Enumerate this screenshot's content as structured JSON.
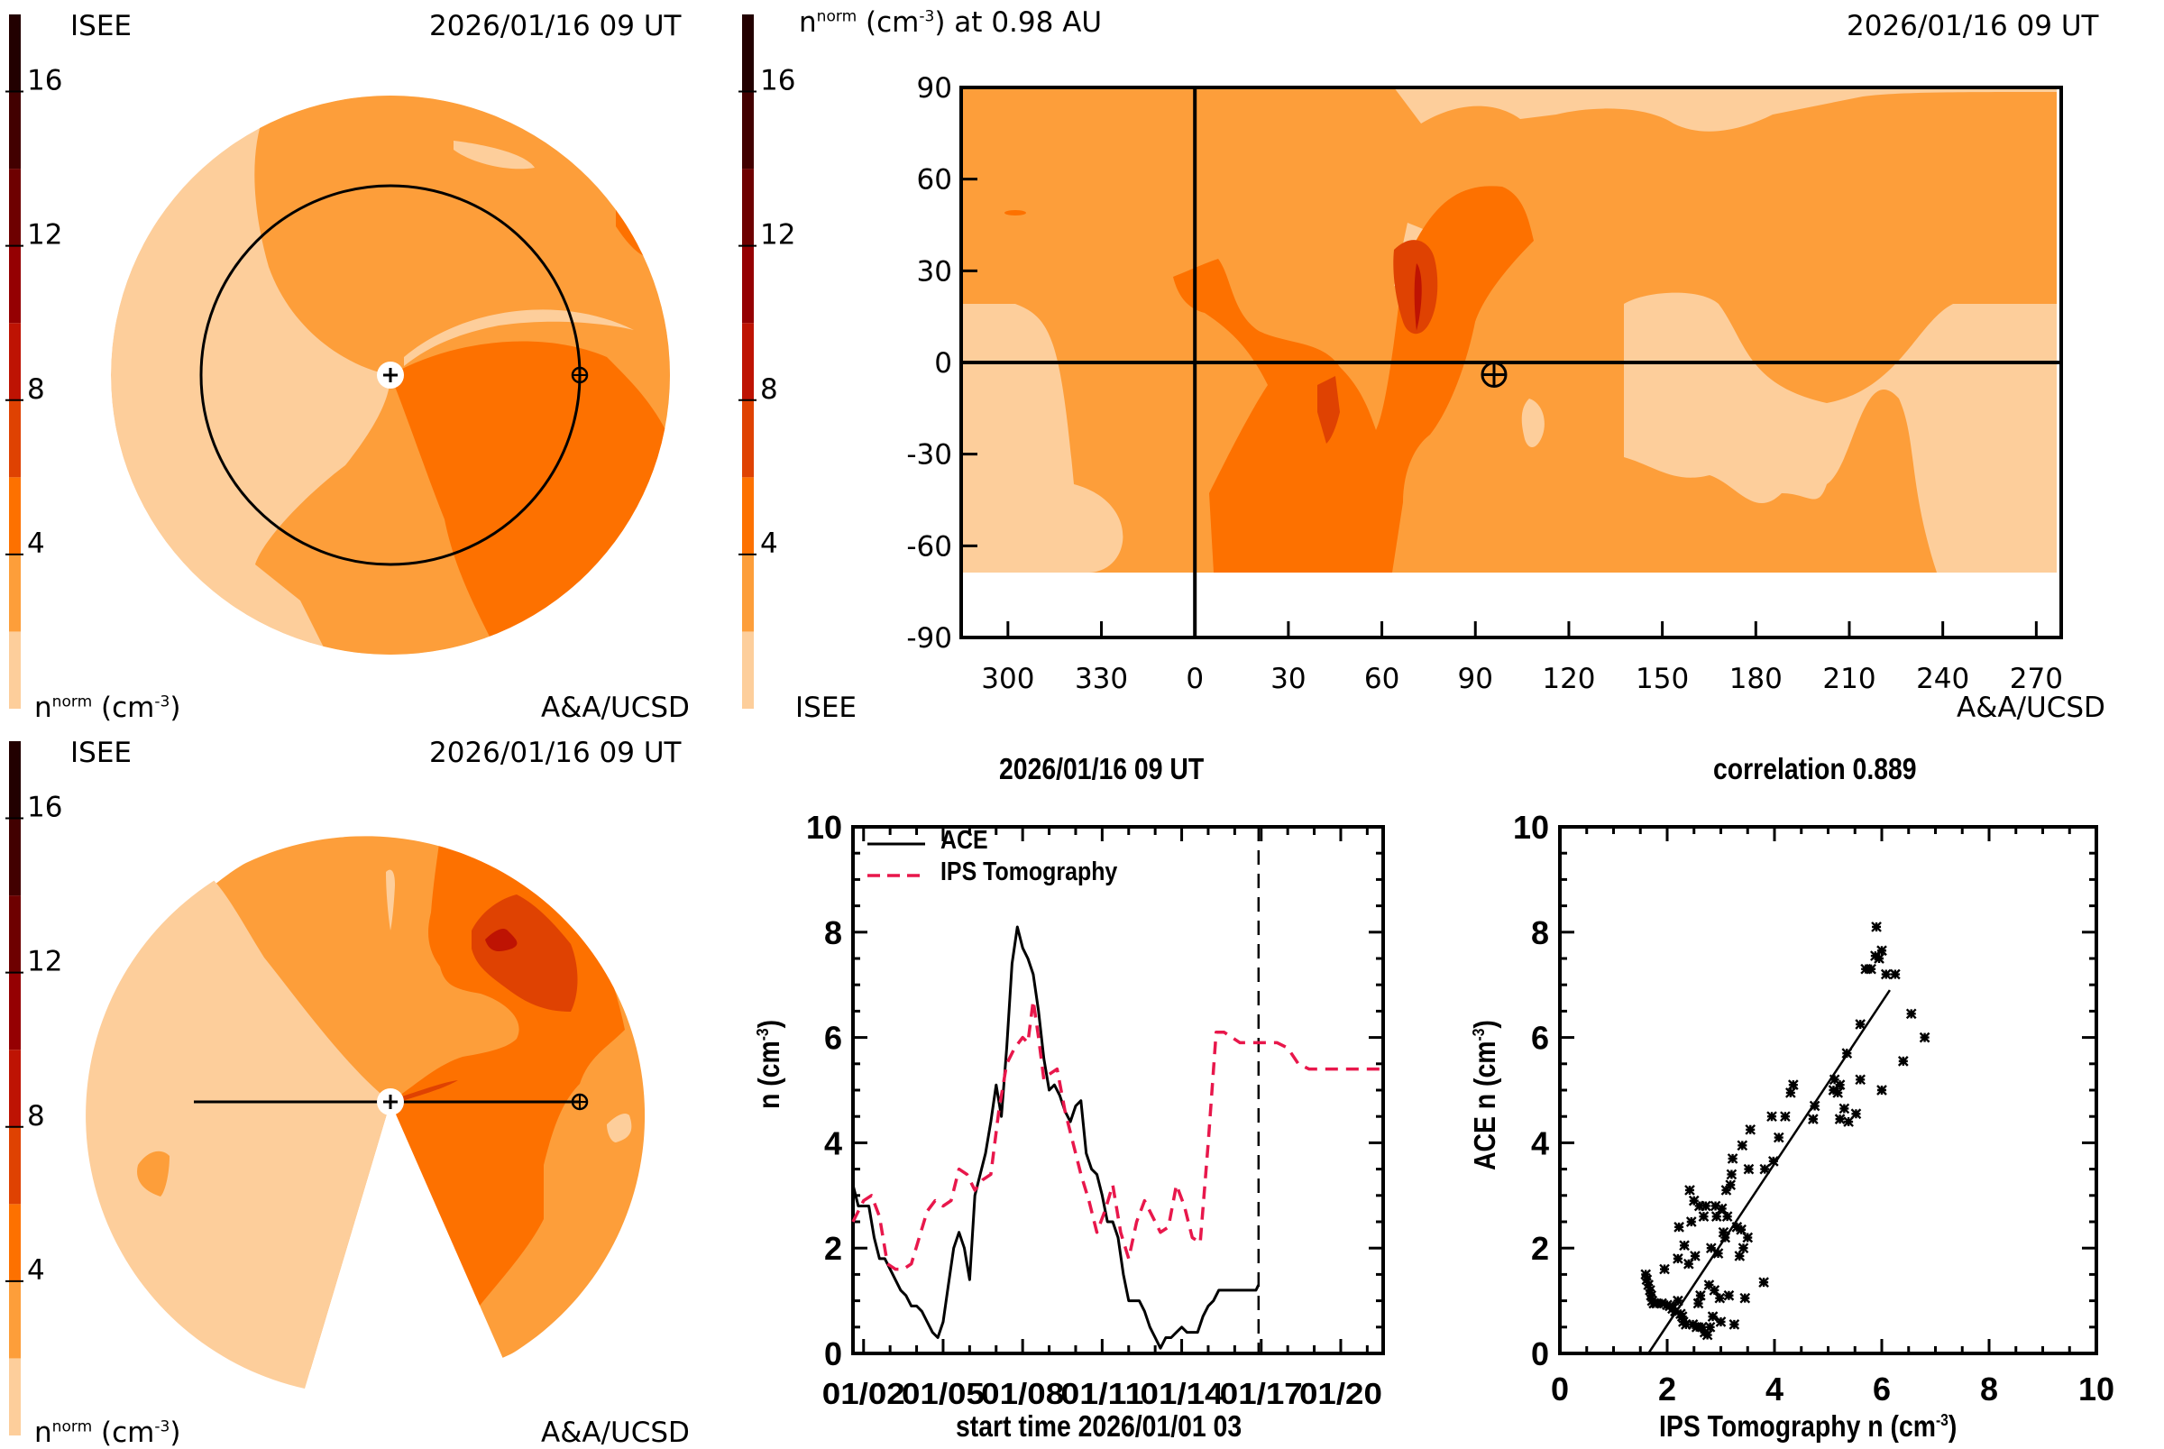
{
  "colorscale": {
    "levels": [
      0,
      2,
      4,
      6,
      8,
      10,
      12,
      14,
      16,
      18
    ],
    "colors": [
      "#FDCE9B",
      "#FD9E3A",
      "#FD7100",
      "#DF4202",
      "#BE1303",
      "#950002",
      "#6E0000",
      "#420000",
      "#220000"
    ],
    "tick_labels": [
      "16",
      "12",
      "8",
      "4"
    ],
    "tick_values": [
      16,
      12,
      8,
      4
    ]
  },
  "panels": {
    "top_left": {
      "org_left": "ISEE",
      "timestamp": "2026/01/16 09 UT",
      "quantity": "n",
      "quantity_sup": "norm",
      "unit": "(cm",
      "unit_sup": "-3",
      "unit_close": ")",
      "credit": "A&A/UCSD"
    },
    "top_right": {
      "title_quantity": "n",
      "title_sup": "norm",
      "title_unit": "(cm",
      "title_unit_sup": "-3",
      "title_rest": ") at 0.98 AU",
      "timestamp": "2026/01/16 09 UT",
      "org_left": "ISEE",
      "credit": "A&A/UCSD",
      "y_ticks": [
        "90",
        "60",
        "30",
        "0",
        "-30",
        "-60",
        "-90"
      ],
      "y_tick_values": [
        90,
        60,
        30,
        0,
        -30,
        -60,
        -90
      ],
      "x_ticks": [
        "300",
        "330",
        "0",
        "30",
        "60",
        "90",
        "120",
        "150",
        "180",
        "210",
        "240",
        "270"
      ],
      "earth_marker": {
        "longitude": 96,
        "latitude": -4
      }
    },
    "bottom_left": {
      "org_left": "ISEE",
      "timestamp": "2026/01/16 09 UT",
      "quantity": "n",
      "quantity_sup": "norm",
      "unit": "(cm",
      "unit_sup": "-3",
      "unit_close": ")",
      "credit": "A&A/UCSD"
    }
  },
  "chart_data": [
    {
      "type": "line",
      "title": "2026/01/16 09 UT",
      "xlabel": "start time 2026/01/01 03",
      "ylabel": "n (cm-3)",
      "ylabel_main": "n (cm",
      "ylabel_sup": "-3",
      "ylabel_close": ")",
      "xlim_days": [
        0.6,
        20.6
      ],
      "ylim": [
        0,
        10
      ],
      "x_tick_labels": [
        "01/02",
        "01/05",
        "01/08",
        "01/11",
        "01/14",
        "01/17",
        "01/20"
      ],
      "x_tick_days": [
        1,
        4,
        7,
        10,
        13,
        16,
        19
      ],
      "y_tick_labels": [
        "0",
        "2",
        "4",
        "6",
        "8",
        "10"
      ],
      "y_tick_values": [
        0,
        2,
        4,
        6,
        8,
        10
      ],
      "current_time_day": 15.9,
      "legend": [
        "ACE",
        "IPS Tomography"
      ],
      "legend_position": "top-left",
      "series": [
        {
          "name": "ACE",
          "color": "#000000",
          "style": "solid",
          "x": [
            0.6,
            0.8,
            1.0,
            1.2,
            1.4,
            1.6,
            1.8,
            2.0,
            2.2,
            2.4,
            2.6,
            2.8,
            3.0,
            3.2,
            3.4,
            3.6,
            3.8,
            4.0,
            4.2,
            4.4,
            4.6,
            4.8,
            5.0,
            5.2,
            5.4,
            5.6,
            5.8,
            6.0,
            6.2,
            6.4,
            6.6,
            6.8,
            7.0,
            7.2,
            7.4,
            7.6,
            7.8,
            8.0,
            8.2,
            8.4,
            8.6,
            8.8,
            9.0,
            9.2,
            9.4,
            9.6,
            9.8,
            10.0,
            10.2,
            10.4,
            10.6,
            10.8,
            11.0,
            11.2,
            11.4,
            11.6,
            11.8,
            12.0,
            12.2,
            12.4,
            12.6,
            12.8,
            13.0,
            13.2,
            13.4,
            13.6,
            13.8,
            14.0,
            14.2,
            14.4,
            14.6,
            14.8,
            15.0,
            15.2,
            15.4,
            15.6,
            15.8,
            15.9
          ],
          "y": [
            3.2,
            2.8,
            2.8,
            2.8,
            2.2,
            1.8,
            1.8,
            1.6,
            1.4,
            1.2,
            1.1,
            0.9,
            0.9,
            0.8,
            0.6,
            0.4,
            0.3,
            0.6,
            1.3,
            2.0,
            2.3,
            2.0,
            1.4,
            3.0,
            3.4,
            3.8,
            4.4,
            5.1,
            4.5,
            5.8,
            7.4,
            8.1,
            7.7,
            7.5,
            7.2,
            6.5,
            5.6,
            5.0,
            5.1,
            4.9,
            4.6,
            4.4,
            4.7,
            4.8,
            3.8,
            3.5,
            3.4,
            3.0,
            2.5,
            2.5,
            2.2,
            1.5,
            1.0,
            1.0,
            1.0,
            0.8,
            0.5,
            0.3,
            0.1,
            0.3,
            0.3,
            0.4,
            0.5,
            0.4,
            0.4,
            0.4,
            0.7,
            0.9,
            1.0,
            1.2,
            1.2,
            1.2,
            1.2,
            1.2,
            1.2,
            1.2,
            1.2,
            1.3
          ]
        },
        {
          "name": "IPS Tomography",
          "color": "#E8174B",
          "style": "dashed",
          "x": [
            0.6,
            1.0,
            1.3,
            1.6,
            1.9,
            2.2,
            2.5,
            2.8,
            3.1,
            3.4,
            3.7,
            4.0,
            4.3,
            4.6,
            4.9,
            5.2,
            5.5,
            5.8,
            6.1,
            6.4,
            6.7,
            7.0,
            7.2,
            7.4,
            7.6,
            7.8,
            8.0,
            8.3,
            8.6,
            8.9,
            9.2,
            9.5,
            9.8,
            10.1,
            10.4,
            10.7,
            11.0,
            11.3,
            11.6,
            11.9,
            12.2,
            12.5,
            12.8,
            13.1,
            13.4,
            13.7,
            14.0,
            14.3,
            14.6,
            14.9,
            15.2,
            15.5,
            15.9,
            16.3,
            16.6,
            17.0,
            17.4,
            17.8,
            18.2,
            18.6,
            19.0,
            19.4,
            19.8,
            20.2,
            20.6
          ],
          "y": [
            2.5,
            2.9,
            3.0,
            2.6,
            1.7,
            1.6,
            1.6,
            1.7,
            2.2,
            2.7,
            2.9,
            2.8,
            2.9,
            3.5,
            3.4,
            3.1,
            3.3,
            3.4,
            4.6,
            5.5,
            5.8,
            6.0,
            5.9,
            6.7,
            6.0,
            5.2,
            5.3,
            5.4,
            4.6,
            4.0,
            3.4,
            2.9,
            2.3,
            2.7,
            3.2,
            2.3,
            1.8,
            2.5,
            2.9,
            2.6,
            2.3,
            2.4,
            3.2,
            2.8,
            2.2,
            2.1,
            4.0,
            6.1,
            6.1,
            6.0,
            5.9,
            5.9,
            5.9,
            5.9,
            5.9,
            5.8,
            5.5,
            5.4,
            5.4,
            5.4,
            5.4,
            5.4,
            5.4,
            5.4,
            5.4
          ]
        }
      ]
    },
    {
      "type": "scatter",
      "title": "correlation 0.889",
      "correlation": 0.889,
      "xlabel": "IPS Tomography n (cm-3)",
      "xlabel_main": "IPS Tomography n (cm",
      "xlabel_sup": "-3",
      "xlabel_close": ")",
      "ylabel": "ACE n (cm-3)",
      "ylabel_main": "ACE n (cm",
      "ylabel_sup": "-3",
      "ylabel_close": ")",
      "xlim": [
        0,
        10
      ],
      "ylim": [
        0,
        10
      ],
      "x_tick_labels": [
        "0",
        "2",
        "4",
        "6",
        "8",
        "10"
      ],
      "x_tick_values": [
        0,
        2,
        4,
        6,
        8,
        10
      ],
      "y_tick_labels": [
        "0",
        "2",
        "4",
        "6",
        "8",
        "10"
      ],
      "y_tick_values": [
        0,
        2,
        4,
        6,
        8,
        10
      ],
      "marker": "x",
      "fit_line": {
        "x": [
          1.65,
          6.15
        ],
        "y": [
          0.0,
          6.9
        ]
      },
      "points": [
        [
          1.6,
          1.5
        ],
        [
          1.62,
          1.4
        ],
        [
          1.65,
          1.3
        ],
        [
          1.68,
          1.2
        ],
        [
          1.7,
          1.1
        ],
        [
          1.72,
          1.0
        ],
        [
          1.75,
          0.95
        ],
        [
          1.8,
          0.95
        ],
        [
          1.9,
          0.95
        ],
        [
          1.95,
          1.6
        ],
        [
          2.0,
          0.92
        ],
        [
          2.05,
          0.9
        ],
        [
          2.1,
          0.85
        ],
        [
          2.15,
          0.8
        ],
        [
          2.2,
          1.8
        ],
        [
          2.2,
          1.0
        ],
        [
          2.22,
          2.4
        ],
        [
          2.25,
          0.75
        ],
        [
          2.28,
          0.7
        ],
        [
          2.3,
          0.6
        ],
        [
          2.32,
          2.05
        ],
        [
          2.35,
          0.55
        ],
        [
          2.4,
          1.7
        ],
        [
          2.42,
          3.1
        ],
        [
          2.45,
          2.5
        ],
        [
          2.48,
          0.55
        ],
        [
          2.5,
          2.9
        ],
        [
          2.52,
          1.85
        ],
        [
          2.55,
          0.5
        ],
        [
          2.58,
          0.95
        ],
        [
          2.6,
          2.8
        ],
        [
          2.62,
          1.1
        ],
        [
          2.65,
          0.5
        ],
        [
          2.68,
          2.6
        ],
        [
          2.7,
          0.4
        ],
        [
          2.72,
          2.8
        ],
        [
          2.75,
          0.35
        ],
        [
          2.78,
          1.3
        ],
        [
          2.8,
          0.5
        ],
        [
          2.82,
          2.0
        ],
        [
          2.85,
          0.7
        ],
        [
          2.88,
          1.2
        ],
        [
          2.9,
          2.8
        ],
        [
          2.92,
          2.6
        ],
        [
          2.95,
          1.9
        ],
        [
          2.98,
          1.05
        ],
        [
          3.0,
          0.6
        ],
        [
          3.02,
          2.75
        ],
        [
          3.05,
          2.3
        ],
        [
          3.08,
          2.2
        ],
        [
          3.1,
          3.1
        ],
        [
          3.12,
          2.6
        ],
        [
          3.15,
          1.1
        ],
        [
          3.18,
          3.2
        ],
        [
          3.2,
          3.4
        ],
        [
          3.22,
          3.7
        ],
        [
          3.25,
          0.55
        ],
        [
          3.3,
          2.4
        ],
        [
          3.35,
          1.85
        ],
        [
          3.38,
          2.35
        ],
        [
          3.4,
          3.95
        ],
        [
          3.42,
          2.0
        ],
        [
          3.45,
          1.05
        ],
        [
          3.5,
          2.2
        ],
        [
          3.52,
          3.5
        ],
        [
          3.55,
          4.25
        ],
        [
          3.8,
          1.35
        ],
        [
          3.82,
          3.5
        ],
        [
          3.95,
          4.5
        ],
        [
          3.98,
          3.65
        ],
        [
          4.08,
          4.1
        ],
        [
          4.2,
          4.5
        ],
        [
          4.3,
          4.95
        ],
        [
          4.35,
          5.1
        ],
        [
          4.72,
          4.45
        ],
        [
          4.75,
          4.7
        ],
        [
          5.1,
          5.0
        ],
        [
          5.12,
          5.2
        ],
        [
          5.18,
          4.95
        ],
        [
          5.22,
          5.1
        ],
        [
          5.22,
          4.45
        ],
        [
          5.3,
          4.65
        ],
        [
          5.35,
          5.7
        ],
        [
          5.38,
          4.4
        ],
        [
          5.52,
          4.55
        ],
        [
          5.6,
          6.25
        ],
        [
          5.6,
          5.2
        ],
        [
          5.7,
          7.3
        ],
        [
          5.8,
          7.3
        ],
        [
          5.88,
          7.55
        ],
        [
          5.9,
          8.1
        ],
        [
          5.95,
          7.5
        ],
        [
          6.0,
          7.65
        ],
        [
          6.0,
          5.0
        ],
        [
          6.08,
          7.2
        ],
        [
          6.25,
          7.2
        ],
        [
          6.4,
          5.55
        ],
        [
          6.55,
          6.45
        ],
        [
          6.8,
          6.0
        ]
      ]
    }
  ]
}
